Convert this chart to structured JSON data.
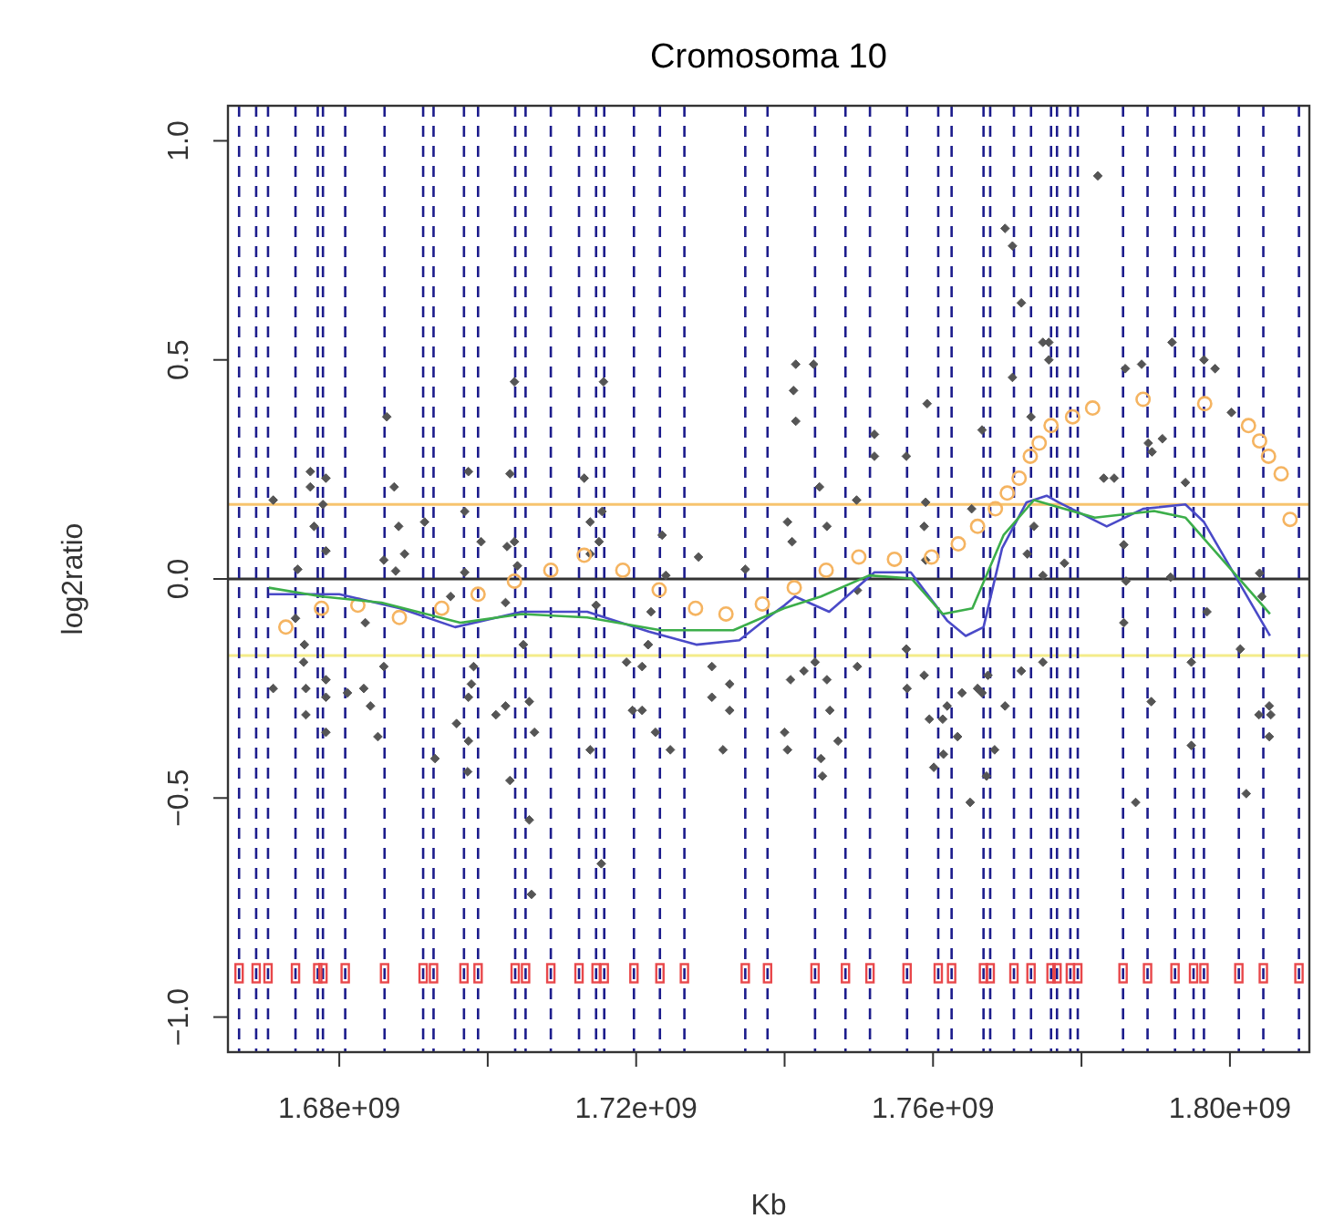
{
  "chart_data": {
    "type": "scatter",
    "title": "Cromosoma 10",
    "xlabel": "Kb",
    "ylabel": "log2ratio",
    "xlim": [
      1665000000,
      1810700000
    ],
    "ylim": [
      -1.08,
      1.08
    ],
    "xticks": [
      {
        "value": 1680000000,
        "label": "1.68e+09"
      },
      {
        "value": 1700000000,
        "label": null
      },
      {
        "value": 1720000000,
        "label": "1.72e+09"
      },
      {
        "value": 1740000000,
        "label": null
      },
      {
        "value": 1760000000,
        "label": "1.76e+09"
      },
      {
        "value": 1780000000,
        "label": null
      },
      {
        "value": 1800000000,
        "label": "1.80e+09"
      }
    ],
    "yticks": [
      {
        "value": -1,
        "label": "−1.0"
      },
      {
        "value": -0.5,
        "label": "−0.5"
      },
      {
        "value": 0,
        "label": "0.0"
      },
      0.5,
      {
        "value": 1,
        "label": "1.0"
      }
    ],
    "series": [
      {
        "color": "#555555",
        "marker": "diamond",
        "x": [
          1671100000,
          1676100000,
          1676100000,
          1678200000,
          1677800000,
          1676600000,
          1678200000,
          1674400000,
          1686400000,
          1687400000,
          1688000000,
          1686000000,
          1688800000,
          1687600000,
          1697400000,
          1696900000,
          1699100000,
          1696900000,
          1703600000,
          1703000000,
          1703600000,
          1702600000,
          1704000000,
          1713000000,
          1715600000,
          1715400000,
          1713800000,
          1715000000,
          1713800000,
          1723500000,
          1728400000,
          1724000000,
          1691500000,
          1695000000,
          1702400000,
          1714600000,
          1722000000,
          1674100000,
          1675300000,
          1683500000,
          1704800000,
          1721600000,
          1734700000,
          1675200000,
          1678200000,
          1671100000,
          1675500000,
          1678200000,
          1675500000,
          1678200000,
          1681100000,
          1683300000,
          1684200000,
          1685200000,
          1686000000,
          1692900000,
          1695800000,
          1697400000,
          1697800000,
          1698100000,
          1697400000,
          1697300000,
          1701100000,
          1702400000,
          1703000000,
          1705600000,
          1706300000,
          1705600000,
          1705900000,
          1713800000,
          1715300000,
          1718700000,
          1720800000,
          1719500000,
          1720800000,
          1722600000,
          1724600000,
          1730200000,
          1730200000,
          1732600000,
          1732600000,
          1731700000,
          1721600000,
          1740000000,
          1740400000,
          1740800000,
          1742600000,
          1744100000,
          1745700000,
          1746100000,
          1744900000,
          1745100000,
          1747200000,
          1749800000,
          1756400000,
          1756500000,
          1758800000,
          1759500000,
          1761300000,
          1760100000,
          1761400000,
          1761900000,
          1763300000,
          1763900000,
          1765000000,
          1766000000,
          1766600000,
          1767200000,
          1768300000,
          1767400000,
          1769700000,
          1771900000,
          1774800000,
          1789400000,
          1787300000,
          1794800000,
          1794800000,
          1802200000,
          1801400000,
          1803900000,
          1805300000,
          1805500000,
          1805300000,
          1785700000,
          1796900000,
          1782200000,
          1769700000,
          1770700000,
          1771900000,
          1775600000,
          1774800000,
          1775600000,
          1770700000,
          1773200000,
          1766600000,
          1741500000,
          1743900000,
          1741200000,
          1741500000,
          1759200000,
          1752100000,
          1752100000,
          1756400000,
          1744700000,
          1749700000,
          1759000000,
          1765200000,
          1792200000,
          1796500000,
          1798000000,
          1785900000,
          1788100000,
          1789000000,
          1790900000,
          1789500000,
          1800200000,
          1783000000,
          1784400000,
          1794000000,
          1804000000,
          1804300000,
          1758800000,
          1759000000,
          1741000000,
          1740400000,
          1745700000,
          1749800000,
          1785700000,
          1786000000,
          1792000000,
          1774800000,
          1777700000,
          1772700000,
          1773600000
        ],
        "values": [
          0.18,
          0.245,
          0.21,
          0.23,
          0.17,
          0.12,
          0.064,
          0.022,
          0.37,
          0.21,
          0.12,
          0.043,
          0.057,
          0.018,
          0.245,
          0.154,
          0.085,
          0.015,
          0.45,
          0.24,
          0.085,
          0.074,
          0.03,
          0.23,
          0.45,
          0.154,
          0.13,
          0.085,
          0.057,
          0.1,
          0.05,
          0.008,
          0.13,
          -0.04,
          -0.054,
          -0.06,
          -0.075,
          -0.09,
          -0.15,
          -0.1,
          -0.15,
          -0.15,
          0.022,
          -0.19,
          -0.23,
          -0.25,
          -0.25,
          -0.27,
          -0.31,
          -0.35,
          -0.26,
          -0.25,
          -0.29,
          -0.36,
          -0.2,
          -0.41,
          -0.33,
          -0.37,
          -0.24,
          -0.2,
          -0.27,
          -0.44,
          -0.31,
          -0.29,
          -0.46,
          -0.28,
          -0.35,
          -0.55,
          -0.72,
          -0.39,
          -0.65,
          -0.19,
          -0.2,
          -0.3,
          -0.3,
          -0.35,
          -0.39,
          -0.2,
          -0.27,
          -0.24,
          -0.3,
          -0.39,
          -0.15,
          -0.35,
          -0.39,
          -0.23,
          -0.21,
          -0.19,
          -0.23,
          -0.3,
          -0.41,
          -0.45,
          -0.37,
          -0.2,
          -0.16,
          -0.25,
          -0.22,
          -0.32,
          -0.32,
          -0.43,
          -0.4,
          -0.29,
          -0.36,
          -0.26,
          -0.51,
          -0.25,
          -0.26,
          -0.45,
          -0.39,
          -0.22,
          -0.29,
          -0.21,
          -0.19,
          -0.28,
          -0.51,
          -0.38,
          -0.19,
          -0.49,
          -0.16,
          -0.31,
          -0.29,
          -0.31,
          -0.36,
          -0.1,
          -0.075,
          0.92,
          0.8,
          0.76,
          0.63,
          0.54,
          0.54,
          0.5,
          0.46,
          0.37,
          0.34,
          0.49,
          0.49,
          0.43,
          0.36,
          0.4,
          0.33,
          0.28,
          0.28,
          0.21,
          0.18,
          0.175,
          0.16,
          0.54,
          0.5,
          0.48,
          0.48,
          0.49,
          0.31,
          0.32,
          0.29,
          0.38,
          0.23,
          0.23,
          0.22,
          0.013,
          -0.04,
          0.12,
          0.043,
          0.085,
          0.13,
          0.12,
          -0.026,
          0.078,
          -0.005,
          0.004,
          0.008,
          0.036,
          0.057,
          0.12
        ]
      },
      {
        "color": "#f5b461",
        "marker": "circle",
        "x": [
          1672800000,
          1677600000,
          1682500000,
          1688100000,
          1693800000,
          1698700000,
          1703600000,
          1708500000,
          1713000000,
          1718200000,
          1723100000,
          1728000000,
          1732100000,
          1737000000,
          1741300000,
          1745600000,
          1750000000,
          1754800000,
          1759800000,
          1763400000,
          1766000000,
          1768400000,
          1770000000,
          1771600000,
          1773100000,
          1774300000,
          1775900000,
          1778800000,
          1781500000,
          1788300000,
          1796600000,
          1802500000,
          1804000000,
          1805200000,
          1806900000,
          1808100000
        ],
        "values": [
          -0.11,
          -0.067,
          -0.06,
          -0.088,
          -0.067,
          -0.035,
          -0.005,
          0.02,
          0.054,
          0.02,
          -0.025,
          -0.067,
          -0.08,
          -0.057,
          -0.02,
          0.02,
          0.05,
          0.045,
          0.05,
          0.08,
          0.12,
          0.16,
          0.196,
          0.23,
          0.28,
          0.31,
          0.35,
          0.37,
          0.39,
          0.41,
          0.4,
          0.35,
          0.315,
          0.28,
          0.24,
          0.136
        ]
      },
      {
        "type": "line",
        "color": "#4a4ac8",
        "marker": "none",
        "x": [
          1670500000,
          1680000000,
          1688200000,
          1695600000,
          1704600000,
          1713400000,
          1721700000,
          1728100000,
          1733900000,
          1737600000,
          1740000000,
          1741400000,
          1746000000,
          1752100000,
          1757000000,
          1761900000,
          1764400000,
          1766800000,
          1769300000,
          1772600000,
          1775300000,
          1776900000,
          1783400000,
          1788300000,
          1794000000,
          1796500000,
          1801300000,
          1805400000
        ],
        "values": [
          -0.035,
          -0.035,
          -0.067,
          -0.11,
          -0.075,
          -0.075,
          -0.12,
          -0.15,
          -0.14,
          -0.09,
          -0.06,
          -0.04,
          -0.075,
          0.015,
          0.015,
          -0.095,
          -0.13,
          -0.11,
          0.07,
          0.175,
          0.19,
          0.175,
          0.12,
          0.16,
          0.17,
          0.13,
          -0.01,
          -0.13
        ]
      },
      {
        "type": "line",
        "color": "#3cae4a",
        "marker": "none",
        "x": [
          1670500000,
          1677600000,
          1685700000,
          1696300000,
          1704600000,
          1713400000,
          1723300000,
          1733100000,
          1739900000,
          1744900000,
          1751400000,
          1757100000,
          1761300000,
          1765300000,
          1769500000,
          1773600000,
          1781800000,
          1789800000,
          1794000000,
          1800500000,
          1805400000
        ],
        "values": [
          -0.02,
          -0.04,
          -0.054,
          -0.1,
          -0.08,
          -0.088,
          -0.117,
          -0.117,
          -0.067,
          -0.04,
          0.008,
          0.001,
          -0.08,
          -0.067,
          0.1,
          0.18,
          0.14,
          0.155,
          0.14,
          0.015,
          -0.08
        ]
      },
      {
        "type": "scatter",
        "color": "#e8474a",
        "marker": "square",
        "x": [
          1666500000,
          1668800000,
          1670400000,
          1674100000,
          1677100000,
          1677800000,
          1680800000,
          1686100000,
          1691300000,
          1692700000,
          1696800000,
          1698700000,
          1703700000,
          1705100000,
          1708500000,
          1712300000,
          1714600000,
          1715700000,
          1719700000,
          1723200000,
          1726500000,
          1734700000,
          1737700000,
          1744100000,
          1748200000,
          1751500000,
          1756500000,
          1760700000,
          1762500000,
          1766800000,
          1767700000,
          1770900000,
          1773200000,
          1775900000,
          1776700000,
          1778500000,
          1779500000,
          1785600000,
          1788900000,
          1792600000,
          1795100000,
          1796500000,
          1801200000,
          1804500000,
          1809300000
        ],
        "values": [
          -0.9,
          -0.9,
          -0.9,
          -0.9,
          -0.9,
          -0.9,
          -0.9,
          -0.9,
          -0.9,
          -0.9,
          -0.9,
          -0.9,
          -0.9,
          -0.9,
          -0.9,
          -0.9,
          -0.9,
          -0.9,
          -0.9,
          -0.9,
          -0.9,
          -0.9,
          -0.9,
          -0.9,
          -0.9,
          -0.9,
          -0.9,
          -0.9,
          -0.9,
          -0.9,
          -0.9,
          -0.9,
          -0.9,
          -0.9,
          -0.9,
          -0.9,
          -0.9,
          -0.9,
          -0.9,
          -0.9,
          -0.9,
          -0.9,
          -0.9,
          -0.9,
          -0.9
        ]
      }
    ],
    "ref_lines": [
      {
        "axis": "y",
        "value": 0,
        "color": "#333333",
        "line_style": "solid"
      },
      {
        "axis": "y",
        "value": 0.17,
        "color": "#f7c46e",
        "line_style": "solid"
      },
      {
        "axis": "y",
        "value": -0.175,
        "color": "#f4ec8a",
        "line_style": "solid"
      },
      {
        "axis": "x",
        "value": 1666500000,
        "color": "#1c1c8c",
        "line_style": "dashed"
      },
      {
        "axis": "x",
        "value": 1668800000,
        "color": "#1c1c8c",
        "line_style": "dashed"
      },
      {
        "axis": "x",
        "value": 1670400000,
        "color": "#1c1c8c",
        "line_style": "dashed"
      },
      {
        "axis": "x",
        "value": 1674100000,
        "color": "#1c1c8c",
        "line_style": "dashed"
      },
      {
        "axis": "x",
        "value": 1677100000,
        "color": "#1c1c8c",
        "line_style": "dashed"
      },
      {
        "axis": "x",
        "value": 1677800000,
        "color": "#1c1c8c",
        "line_style": "dashed"
      },
      {
        "axis": "x",
        "value": 1680800000,
        "color": "#1c1c8c",
        "line_style": "dashed"
      },
      {
        "axis": "x",
        "value": 1686100000,
        "color": "#1c1c8c",
        "line_style": "dashed"
      },
      {
        "axis": "x",
        "value": 1691300000,
        "color": "#1c1c8c",
        "line_style": "dashed"
      },
      {
        "axis": "x",
        "value": 1692700000,
        "color": "#1c1c8c",
        "line_style": "dashed"
      },
      {
        "axis": "x",
        "value": 1696800000,
        "color": "#1c1c8c",
        "line_style": "dashed"
      },
      {
        "axis": "x",
        "value": 1698700000,
        "color": "#1c1c8c",
        "line_style": "dashed"
      },
      {
        "axis": "x",
        "value": 1703700000,
        "color": "#1c1c8c",
        "line_style": "dashed"
      },
      {
        "axis": "x",
        "value": 1705100000,
        "color": "#1c1c8c",
        "line_style": "dashed"
      },
      {
        "axis": "x",
        "value": 1708500000,
        "color": "#1c1c8c",
        "line_style": "dashed"
      },
      {
        "axis": "x",
        "value": 1712300000,
        "color": "#1c1c8c",
        "line_style": "dashed"
      },
      {
        "axis": "x",
        "value": 1714600000,
        "color": "#1c1c8c",
        "line_style": "dashed"
      },
      {
        "axis": "x",
        "value": 1715700000,
        "color": "#1c1c8c",
        "line_style": "dashed"
      },
      {
        "axis": "x",
        "value": 1719700000,
        "color": "#1c1c8c",
        "line_style": "dashed"
      },
      {
        "axis": "x",
        "value": 1723200000,
        "color": "#1c1c8c",
        "line_style": "dashed"
      },
      {
        "axis": "x",
        "value": 1726500000,
        "color": "#1c1c8c",
        "line_style": "dashed"
      },
      {
        "axis": "x",
        "value": 1734700000,
        "color": "#1c1c8c",
        "line_style": "dashed"
      },
      {
        "axis": "x",
        "value": 1737700000,
        "color": "#1c1c8c",
        "line_style": "dashed"
      },
      {
        "axis": "x",
        "value": 1744100000,
        "color": "#1c1c8c",
        "line_style": "dashed"
      },
      {
        "axis": "x",
        "value": 1748200000,
        "color": "#1c1c8c",
        "line_style": "dashed"
      },
      {
        "axis": "x",
        "value": 1751500000,
        "color": "#1c1c8c",
        "line_style": "dashed"
      },
      {
        "axis": "x",
        "value": 1756500000,
        "color": "#1c1c8c",
        "line_style": "dashed"
      },
      {
        "axis": "x",
        "value": 1760700000,
        "color": "#1c1c8c",
        "line_style": "dashed"
      },
      {
        "axis": "x",
        "value": 1762500000,
        "color": "#1c1c8c",
        "line_style": "dashed"
      },
      {
        "axis": "x",
        "value": 1766800000,
        "color": "#1c1c8c",
        "line_style": "dashed"
      },
      {
        "axis": "x",
        "value": 1767700000,
        "color": "#1c1c8c",
        "line_style": "dashed"
      },
      {
        "axis": "x",
        "value": 1770900000,
        "color": "#1c1c8c",
        "line_style": "dashed"
      },
      {
        "axis": "x",
        "value": 1773200000,
        "color": "#1c1c8c",
        "line_style": "dashed"
      },
      {
        "axis": "x",
        "value": 1775900000,
        "color": "#1c1c8c",
        "line_style": "dashed"
      },
      {
        "axis": "x",
        "value": 1776700000,
        "color": "#1c1c8c",
        "line_style": "dashed"
      },
      {
        "axis": "x",
        "value": 1778500000,
        "color": "#1c1c8c",
        "line_style": "dashed"
      },
      {
        "axis": "x",
        "value": 1779500000,
        "color": "#1c1c8c",
        "line_style": "dashed"
      },
      {
        "axis": "x",
        "value": 1785600000,
        "color": "#1c1c8c",
        "line_style": "dashed"
      },
      {
        "axis": "x",
        "value": 1788900000,
        "color": "#1c1c8c",
        "line_style": "dashed"
      },
      {
        "axis": "x",
        "value": 1792600000,
        "color": "#1c1c8c",
        "line_style": "dashed"
      },
      {
        "axis": "x",
        "value": 1795100000,
        "color": "#1c1c8c",
        "line_style": "dashed"
      },
      {
        "axis": "x",
        "value": 1796500000,
        "color": "#1c1c8c",
        "line_style": "dashed"
      },
      {
        "axis": "x",
        "value": 1801200000,
        "color": "#1c1c8c",
        "line_style": "dashed"
      },
      {
        "axis": "x",
        "value": 1804500000,
        "color": "#1c1c8c",
        "line_style": "dashed"
      },
      {
        "axis": "x",
        "value": 1809300000,
        "color": "#1c1c8c",
        "line_style": "dashed"
      }
    ]
  }
}
